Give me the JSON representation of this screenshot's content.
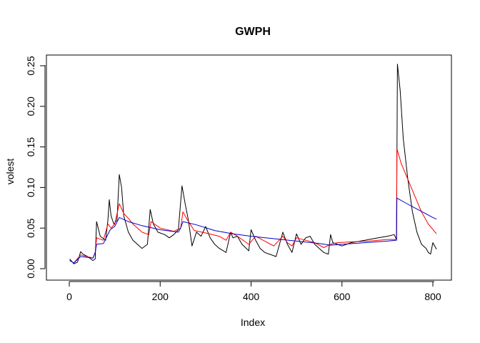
{
  "chart_data": {
    "type": "line",
    "title": "GWPH",
    "xlabel": "Index",
    "ylabel": "volest",
    "xlim": [
      0,
      820
    ],
    "ylim": [
      0,
      0.25
    ],
    "xticks": [
      0,
      200,
      400,
      600,
      800
    ],
    "xtick_labels": [
      "0",
      "200",
      "400",
      "600",
      "800"
    ],
    "yticks": [
      0.0,
      0.05,
      0.1,
      0.15,
      0.2,
      0.25
    ],
    "ytick_labels": [
      "0.00",
      "0.05",
      "0.10",
      "0.15",
      "0.20",
      "0.25"
    ],
    "grid": false,
    "legend": "none",
    "series": [
      {
        "color": "#000000",
        "x": [
          1,
          10,
          18,
          25,
          30,
          40,
          52,
          57,
          60,
          68,
          80,
          85,
          88,
          92,
          98,
          105,
          110,
          115,
          120,
          130,
          140,
          150,
          160,
          172,
          178,
          185,
          195,
          210,
          220,
          230,
          240,
          248,
          255,
          262,
          270,
          280,
          290,
          300,
          310,
          320,
          330,
          345,
          355,
          360,
          370,
          380,
          395,
          400,
          410,
          420,
          430,
          440,
          455,
          470,
          480,
          490,
          500,
          510,
          520,
          530,
          540,
          550,
          560,
          570,
          575,
          580,
          590,
          600,
          620,
          640,
          660,
          680,
          700,
          715,
          720,
          722,
          728,
          735,
          745,
          755,
          765,
          775,
          785,
          790,
          795,
          800,
          808
        ],
        "y": [
          0.012,
          0.006,
          0.008,
          0.021,
          0.018,
          0.015,
          0.01,
          0.012,
          0.058,
          0.04,
          0.035,
          0.06,
          0.085,
          0.065,
          0.055,
          0.06,
          0.116,
          0.1,
          0.065,
          0.045,
          0.035,
          0.03,
          0.025,
          0.03,
          0.073,
          0.055,
          0.045,
          0.042,
          0.038,
          0.042,
          0.048,
          0.102,
          0.08,
          0.06,
          0.028,
          0.045,
          0.04,
          0.052,
          0.038,
          0.03,
          0.025,
          0.02,
          0.045,
          0.038,
          0.04,
          0.03,
          0.022,
          0.048,
          0.035,
          0.025,
          0.02,
          0.018,
          0.015,
          0.045,
          0.03,
          0.02,
          0.043,
          0.03,
          0.038,
          0.04,
          0.03,
          0.025,
          0.02,
          0.018,
          0.042,
          0.032,
          0.03,
          0.028,
          0.032,
          0.034,
          0.036,
          0.038,
          0.04,
          0.042,
          0.036,
          0.252,
          0.22,
          0.16,
          0.11,
          0.07,
          0.045,
          0.03,
          0.025,
          0.02,
          0.018,
          0.032,
          0.024
        ]
      },
      {
        "color": "#ff0000",
        "x": [
          1,
          10,
          25,
          52,
          57,
          60,
          75,
          85,
          92,
          100,
          110,
          120,
          130,
          140,
          160,
          175,
          180,
          200,
          230,
          245,
          250,
          260,
          275,
          300,
          330,
          345,
          355,
          370,
          380,
          395,
          410,
          430,
          450,
          470,
          480,
          490,
          500,
          520,
          540,
          560,
          575,
          590,
          620,
          660,
          700,
          718,
          720,
          721,
          730,
          745,
          760,
          775,
          790,
          808
        ],
        "y": [
          0.01,
          0.007,
          0.017,
          0.013,
          0.02,
          0.038,
          0.035,
          0.055,
          0.05,
          0.055,
          0.08,
          0.068,
          0.062,
          0.055,
          0.045,
          0.042,
          0.058,
          0.05,
          0.046,
          0.05,
          0.07,
          0.06,
          0.047,
          0.044,
          0.04,
          0.035,
          0.045,
          0.04,
          0.036,
          0.03,
          0.04,
          0.034,
          0.028,
          0.04,
          0.032,
          0.028,
          0.038,
          0.035,
          0.032,
          0.026,
          0.03,
          0.032,
          0.033,
          0.034,
          0.036,
          0.036,
          0.036,
          0.148,
          0.13,
          0.11,
          0.09,
          0.07,
          0.055,
          0.043
        ]
      },
      {
        "color": "#0000cc",
        "x": [
          1,
          10,
          25,
          52,
          57,
          60,
          75,
          90,
          100,
          110,
          130,
          160,
          200,
          240,
          245,
          250,
          280,
          320,
          360,
          400,
          450,
          500,
          550,
          575,
          600,
          650,
          700,
          718,
          720,
          721,
          740,
          760,
          780,
          800,
          808
        ],
        "y": [
          0.01,
          0.007,
          0.015,
          0.013,
          0.02,
          0.03,
          0.031,
          0.048,
          0.052,
          0.063,
          0.058,
          0.053,
          0.048,
          0.045,
          0.05,
          0.058,
          0.054,
          0.047,
          0.043,
          0.04,
          0.037,
          0.034,
          0.031,
          0.029,
          0.03,
          0.032,
          0.034,
          0.035,
          0.035,
          0.087,
          0.081,
          0.075,
          0.069,
          0.063,
          0.061
        ]
      }
    ]
  }
}
